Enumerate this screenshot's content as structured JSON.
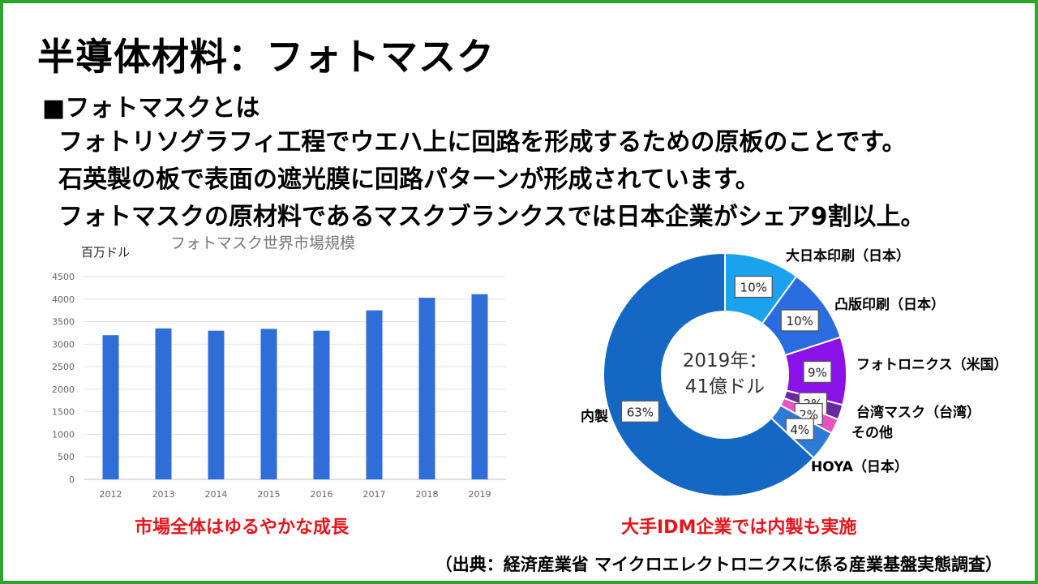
{
  "slide": {
    "title": "半導体材料：フォトマスク",
    "subheading": "■フォトマスクとは",
    "body_lines": [
      "フォトリソグラフィ工程でウエハ上に回路を形成するための原板のことです。",
      "石英製の板で表面の遮光膜に回路パターンが形成されています。",
      "フォトマスクの原材料であるマスクブランクスでは日本企業がシェア9割以上。"
    ],
    "bar_caption": "市場全体はゆるやかな成長",
    "pie_caption": "大手IDM企業では内製も実施",
    "source": "（出典：経済産業省 マイクロエレクトロニクスに係る産業基盤実態調査）"
  },
  "colors": {
    "border": "#2ea52e",
    "bar": "#2f6ed8",
    "caption": "#e8141b",
    "slices": [
      "#1ba2ef",
      "#2a6be0",
      "#8a12e8",
      "#6a2a9e",
      "#e552c4",
      "#2f79d8",
      "#1468c4"
    ]
  },
  "chart_data": [
    {
      "type": "bar",
      "title": "フォトマスク世界市場規模",
      "ylabel": "百万ドル",
      "categories": [
        "2012",
        "2013",
        "2014",
        "2015",
        "2016",
        "2017",
        "2018",
        "2019"
      ],
      "values": [
        3200,
        3350,
        3300,
        3340,
        3300,
        3750,
        4030,
        4110
      ],
      "ylim": [
        0,
        4500
      ],
      "yticks": [
        "0",
        "500",
        "1000",
        "1500",
        "2000",
        "2500",
        "3000",
        "3500",
        "4000",
        "4500"
      ],
      "grid": true
    },
    {
      "type": "pie",
      "variant": "donut",
      "center_label": [
        "2019年：",
        "41億ドル"
      ],
      "slices": [
        {
          "name": "大日本印刷（日本）",
          "value": 10,
          "label": "10%"
        },
        {
          "name": "凸版印刷（日本）",
          "value": 10,
          "label": "10%"
        },
        {
          "name": "フォトロニクス（米国）",
          "value": 9,
          "label": "9%"
        },
        {
          "name": "台湾マスク（台湾）",
          "value": 2,
          "label": "2%"
        },
        {
          "name": "その他",
          "value": 2,
          "label": "2%"
        },
        {
          "name": "HOYA（日本）",
          "value": 4,
          "label": "4%"
        },
        {
          "name": "内製",
          "value": 63,
          "label": "63%"
        }
      ]
    }
  ]
}
